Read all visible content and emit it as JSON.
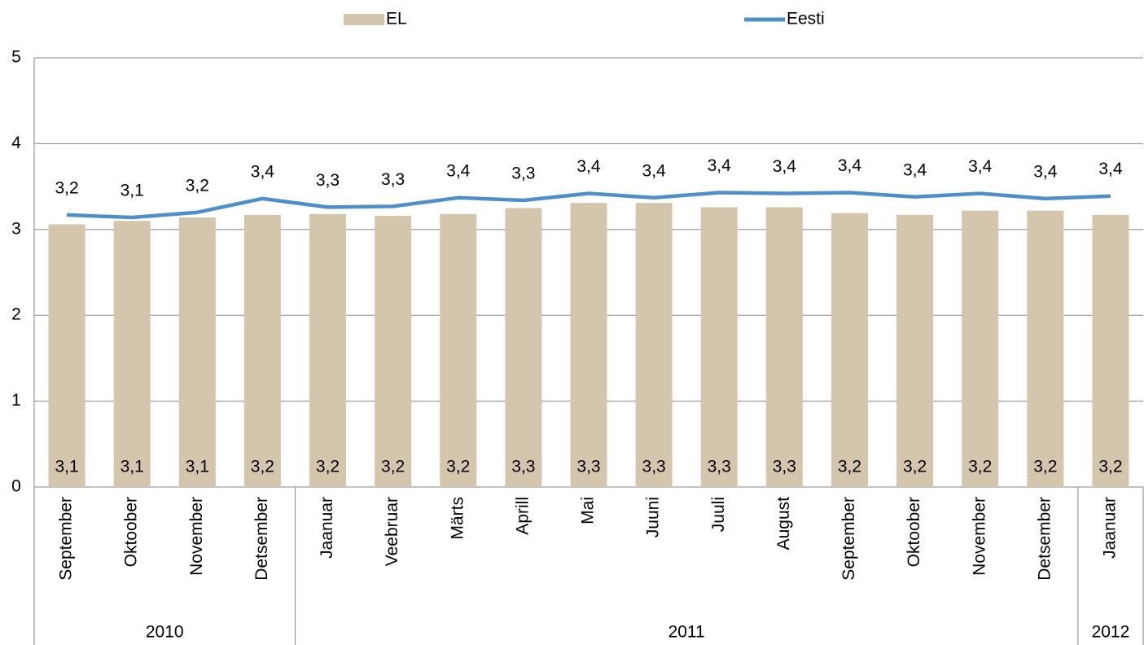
{
  "chart_data": {
    "type": "bar_line",
    "groups": [
      {
        "name": "2010",
        "categories": [
          "September",
          "Oktoober",
          "November",
          "Detsember"
        ]
      },
      {
        "name": "2011",
        "categories": [
          "Jaanuar",
          "Veebruar",
          "Märts",
          "Aprill",
          "Mai",
          "Juuni",
          "Juuli",
          "August",
          "September",
          "Oktoober",
          "November",
          "Detsember"
        ]
      },
      {
        "name": "2012",
        "categories": [
          "Jaanuar"
        ]
      }
    ],
    "series": [
      {
        "name": "EL",
        "type": "bar",
        "color": "#d4c5ad",
        "values": [
          3.06,
          3.1,
          3.14,
          3.17,
          3.18,
          3.16,
          3.18,
          3.25,
          3.31,
          3.31,
          3.26,
          3.26,
          3.19,
          3.17,
          3.22,
          3.22,
          3.17
        ],
        "value_labels": [
          "3,1",
          "3,1",
          "3,1",
          "3,2",
          "3,2",
          "3,2",
          "3,2",
          "3,3",
          "3,3",
          "3,3",
          "3,3",
          "3,3",
          "3,2",
          "3,2",
          "3,2",
          "3,2",
          "3,2"
        ]
      },
      {
        "name": "Eesti",
        "type": "line",
        "color": "#4f8fc9",
        "values": [
          3.17,
          3.14,
          3.2,
          3.36,
          3.26,
          3.27,
          3.37,
          3.34,
          3.42,
          3.37,
          3.43,
          3.42,
          3.43,
          3.38,
          3.42,
          3.36,
          3.39
        ],
        "value_labels": [
          "3,2",
          "3,1",
          "3,2",
          "3,4",
          "3,3",
          "3,3",
          "3,4",
          "3,3",
          "3,4",
          "3,4",
          "3,4",
          "3,4",
          "3,4",
          "3,4",
          "3,4",
          "3,4",
          "3,4"
        ]
      }
    ],
    "ylim": [
      0,
      5
    ],
    "yticks": [
      0,
      1,
      2,
      3,
      4,
      5
    ],
    "grid": true,
    "legend": "top"
  }
}
